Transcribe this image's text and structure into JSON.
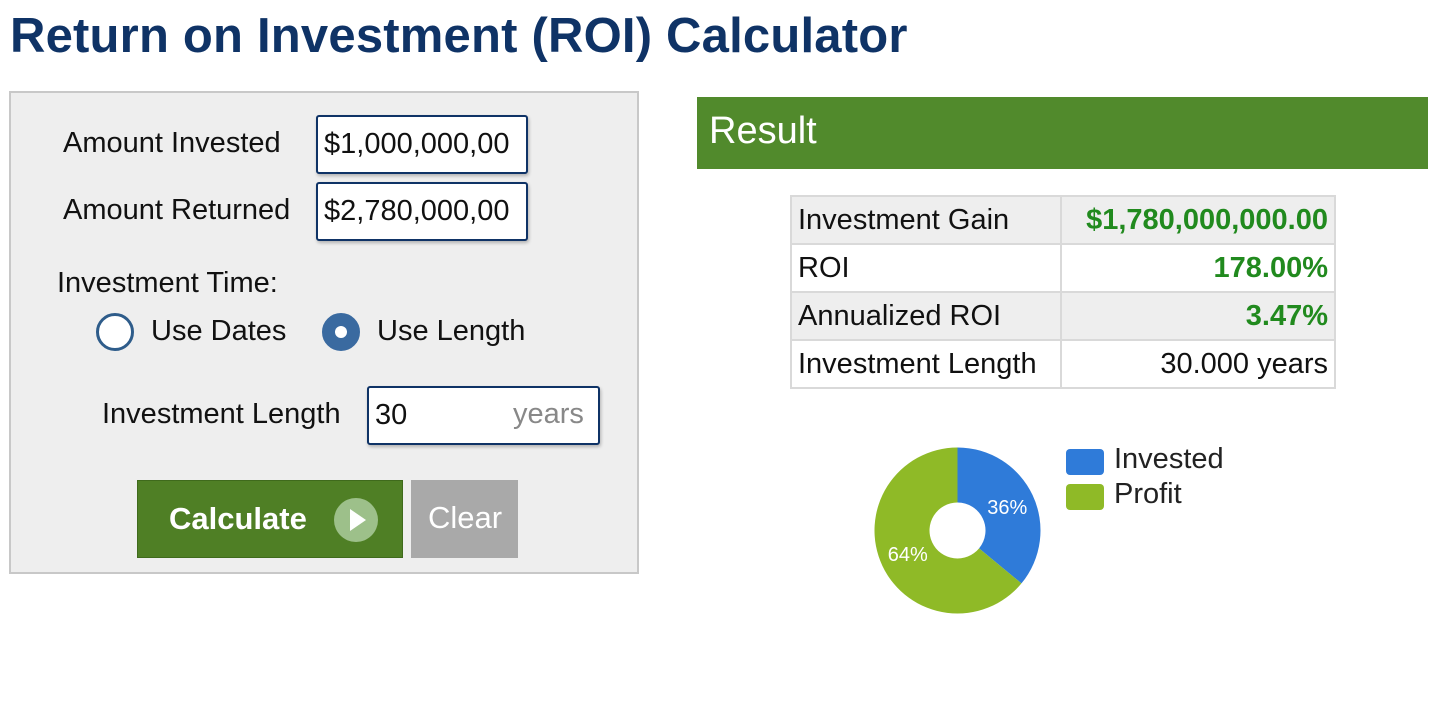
{
  "page": {
    "title": "Return on Investment (ROI) Calculator"
  },
  "form": {
    "amount_invested_label": "Amount Invested",
    "amount_invested_value": "$1,000,000,00",
    "amount_returned_label": "Amount Returned",
    "amount_returned_value": "$2,780,000,00",
    "investment_time_label": "Investment Time:",
    "options": [
      {
        "label": "Use Dates",
        "selected": false
      },
      {
        "label": "Use Length",
        "selected": true
      }
    ],
    "investment_length_label": "Investment Length",
    "investment_length_value": "30",
    "investment_length_units": "years",
    "calculate_label": "Calculate",
    "clear_label": "Clear"
  },
  "result": {
    "header": "Result",
    "rows": [
      {
        "label": "Investment Gain",
        "value": "$1,780,000,000.00"
      },
      {
        "label": "ROI",
        "value": "178.00%"
      },
      {
        "label": "Annualized ROI",
        "value": "3.47%"
      },
      {
        "label": "Investment Length",
        "value": "30.000 years"
      }
    ]
  },
  "colors": {
    "title": "#0f3366",
    "result_header": "#518a2c",
    "result_value_green": "#218a1e",
    "invested": "#2f7bd9",
    "profit": "#8fba27"
  },
  "chart_data": {
    "type": "pie",
    "style": "donut",
    "categories": [
      "Invested",
      "Profit"
    ],
    "values": [
      36,
      64
    ],
    "labels": [
      "36%",
      "64%"
    ],
    "colors": [
      "#2f7bd9",
      "#8fba27"
    ],
    "legend": "right"
  }
}
